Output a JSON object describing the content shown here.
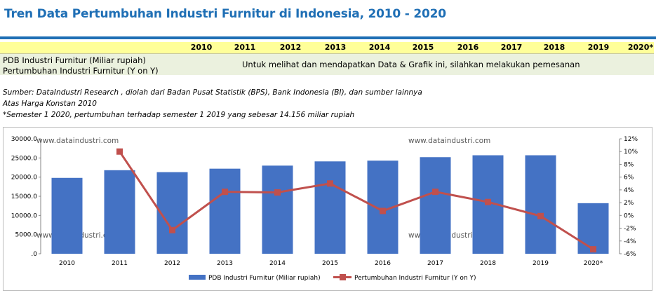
{
  "title": "Tren Data Pertumbuhan Industri Furnitur di Indonesia, 2010 - 2020",
  "table": {
    "years": [
      "2010",
      "2011",
      "2012",
      "2013",
      "2014",
      "2015",
      "2016",
      "2017",
      "2018",
      "2019",
      "2020*"
    ],
    "row1_label": "PDB Industri Furnitur (Miliar rupiah)",
    "row2_label": "Pertumbuhan Industri Furnitur  (Y on Y)",
    "notice": "Untuk melihat dan mendapatkan Data & Grafik ini, silahkan melakukan pemesanan"
  },
  "notes": {
    "source": "Sumber: DataIndustri Research , diolah dari Badan Pusat Statistik (BPS), Bank Indonesia (BI), dan sumber lainnya",
    "price_basis": "Atas Harga Konstan 2010",
    "semester_note": "*Semester 1 2020, pertumbuhan terhadap semester 1 2019 yang sebesar 14.156 miliar rupiah"
  },
  "watermark": "www.dataindustri.com",
  "chart_data": {
    "type": "bar",
    "categories": [
      "2010",
      "2011",
      "2012",
      "2013",
      "2014",
      "2015",
      "2016",
      "2017",
      "2018",
      "2019",
      "2020*"
    ],
    "series": [
      {
        "name": "PDB Industri Furnitur (Miliar rupiah)",
        "type": "bar",
        "axis": "left",
        "values": [
          19800,
          21800,
          21300,
          22200,
          23000,
          24100,
          24300,
          25200,
          25700,
          25700,
          13200
        ],
        "color": "#4472c4"
      },
      {
        "name": "Pertumbuhan Industri Furnitur  (Y on Y)",
        "type": "line",
        "axis": "right",
        "values": [
          null,
          10.0,
          -2.3,
          3.7,
          3.6,
          5.0,
          0.7,
          3.7,
          2.1,
          -0.1,
          -5.3
        ],
        "color": "#c0504d"
      }
    ],
    "y_left": {
      "ylim": [
        0,
        30000
      ],
      "ticks": [
        "30000.0",
        "25000.0",
        "20000.0",
        "15000.0",
        "10000.0",
        "5000.0",
        ".0"
      ]
    },
    "y_right": {
      "ylim": [
        -6,
        12
      ],
      "ticks": [
        "12%",
        "10%",
        "8%",
        "6%",
        "4%",
        "2%",
        "0%",
        "-2%",
        "-4%",
        "-6%"
      ]
    },
    "legend": "bottom"
  }
}
